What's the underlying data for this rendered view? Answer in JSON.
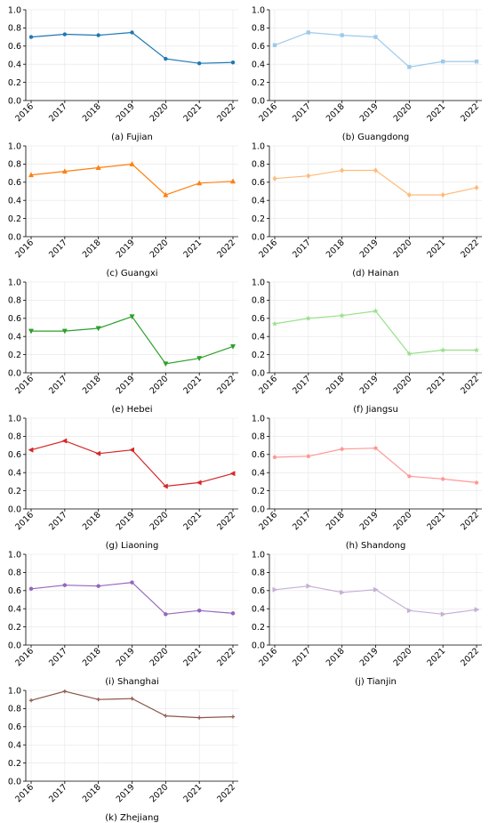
{
  "chart_data": [
    {
      "type": "line",
      "caption": "(a) Fujian",
      "color": "#1f77b4",
      "marker": "circle",
      "categories": [
        "2016",
        "2017",
        "2018",
        "2019",
        "2020",
        "2021",
        "2022"
      ],
      "values": [
        0.7,
        0.73,
        0.72,
        0.75,
        0.46,
        0.41,
        0.42
      ],
      "ylim": [
        0,
        1.0
      ],
      "yticks": [
        "0.0",
        "0.2",
        "0.4",
        "0.6",
        "0.8",
        "1.0"
      ],
      "grid": true
    },
    {
      "type": "line",
      "caption": "(b) Guangdong",
      "color": "#9ecae9",
      "marker": "square",
      "categories": [
        "2016",
        "2017",
        "2018",
        "2019",
        "2020",
        "2021",
        "2022"
      ],
      "values": [
        0.61,
        0.75,
        0.72,
        0.7,
        0.37,
        0.43,
        0.43
      ],
      "ylim": [
        0,
        1.0
      ],
      "yticks": [
        "0.0",
        "0.2",
        "0.4",
        "0.6",
        "0.8",
        "1.0"
      ],
      "grid": true
    },
    {
      "type": "line",
      "caption": "(c) Guangxi",
      "color": "#ff7f0e",
      "marker": "triangle-up",
      "categories": [
        "2016",
        "2017",
        "2018",
        "2019",
        "2020",
        "2021",
        "2022"
      ],
      "values": [
        0.68,
        0.72,
        0.76,
        0.8,
        0.46,
        0.59,
        0.61
      ],
      "ylim": [
        0,
        1.0
      ],
      "yticks": [
        "0.0",
        "0.2",
        "0.4",
        "0.6",
        "0.8",
        "1.0"
      ],
      "grid": true
    },
    {
      "type": "line",
      "caption": "(d) Hainan",
      "color": "#ffbb78",
      "marker": "diamond",
      "categories": [
        "2016",
        "2017",
        "2018",
        "2019",
        "2020",
        "2021",
        "2022"
      ],
      "values": [
        0.64,
        0.67,
        0.73,
        0.73,
        0.46,
        0.46,
        0.54
      ],
      "ylim": [
        0,
        1.0
      ],
      "yticks": [
        "0.0",
        "0.2",
        "0.4",
        "0.6",
        "0.8",
        "1.0"
      ],
      "grid": true
    },
    {
      "type": "line",
      "caption": "(e) Hebei",
      "color": "#2ca02c",
      "marker": "triangle-down",
      "categories": [
        "2016",
        "2017",
        "2018",
        "2019",
        "2020",
        "2021",
        "2022"
      ],
      "values": [
        0.46,
        0.46,
        0.49,
        0.62,
        0.1,
        0.16,
        0.29
      ],
      "ylim": [
        0,
        1.0
      ],
      "yticks": [
        "0.0",
        "0.2",
        "0.4",
        "0.6",
        "0.8",
        "1.0"
      ],
      "grid": true
    },
    {
      "type": "line",
      "caption": "(f) Jiangsu",
      "color": "#98df8a",
      "marker": "star",
      "categories": [
        "2016",
        "2017",
        "2018",
        "2019",
        "2020",
        "2021",
        "2022"
      ],
      "values": [
        0.54,
        0.6,
        0.63,
        0.68,
        0.21,
        0.25,
        0.25
      ],
      "ylim": [
        0,
        1.0
      ],
      "yticks": [
        "0.0",
        "0.2",
        "0.4",
        "0.6",
        "0.8",
        "1.0"
      ],
      "grid": true
    },
    {
      "type": "line",
      "caption": "(g) Liaoning",
      "color": "#d62728",
      "marker": "triangle-left",
      "categories": [
        "2016",
        "2017",
        "2018",
        "2019",
        "2020",
        "2021",
        "2022"
      ],
      "values": [
        0.65,
        0.75,
        0.61,
        0.65,
        0.25,
        0.29,
        0.39
      ],
      "ylim": [
        0,
        1.0
      ],
      "yticks": [
        "0.0",
        "0.2",
        "0.4",
        "0.6",
        "0.8",
        "1.0"
      ],
      "grid": true
    },
    {
      "type": "line",
      "caption": "(h) Shandong",
      "color": "#ff9896",
      "marker": "pentagon",
      "categories": [
        "2016",
        "2017",
        "2018",
        "2019",
        "2020",
        "2021",
        "2022"
      ],
      "values": [
        0.57,
        0.58,
        0.66,
        0.67,
        0.36,
        0.33,
        0.29
      ],
      "ylim": [
        0,
        1.0
      ],
      "yticks": [
        "0.0",
        "0.2",
        "0.4",
        "0.6",
        "0.8",
        "1.0"
      ],
      "grid": true
    },
    {
      "type": "line",
      "caption": "(i) Shanghai",
      "color": "#9467bd",
      "marker": "hexagon",
      "categories": [
        "2016",
        "2017",
        "2018",
        "2019",
        "2020",
        "2021",
        "2022"
      ],
      "values": [
        0.62,
        0.66,
        0.65,
        0.69,
        0.34,
        0.38,
        0.35
      ],
      "ylim": [
        0,
        1.0
      ],
      "yticks": [
        "0.0",
        "0.2",
        "0.4",
        "0.6",
        "0.8",
        "1.0"
      ],
      "grid": true
    },
    {
      "type": "line",
      "caption": "(j) Tianjin",
      "color": "#c5b0d5",
      "marker": "triangle-right",
      "categories": [
        "2016",
        "2017",
        "2018",
        "2019",
        "2020",
        "2021",
        "2022"
      ],
      "values": [
        0.61,
        0.65,
        0.58,
        0.61,
        0.38,
        0.34,
        0.39
      ],
      "ylim": [
        0,
        1.0
      ],
      "yticks": [
        "0.0",
        "0.2",
        "0.4",
        "0.6",
        "0.8",
        "1.0"
      ],
      "grid": true
    },
    {
      "type": "line",
      "caption": "(k) Zhejiang",
      "color": "#8c564b",
      "marker": "plus",
      "categories": [
        "2016",
        "2017",
        "2018",
        "2019",
        "2020",
        "2021",
        "2022"
      ],
      "values": [
        0.89,
        0.99,
        0.9,
        0.91,
        0.72,
        0.7,
        0.71
      ],
      "ylim": [
        0,
        1.0
      ],
      "yticks": [
        "0.0",
        "0.2",
        "0.4",
        "0.6",
        "0.8",
        "1.0"
      ],
      "grid": true
    }
  ]
}
